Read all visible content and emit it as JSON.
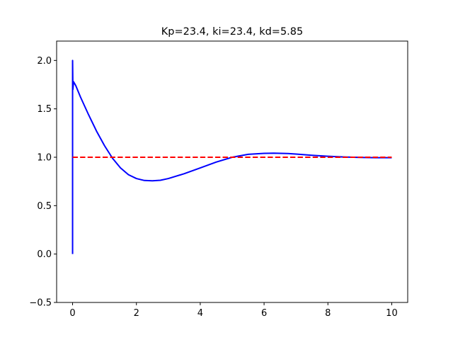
{
  "chart_data": {
    "type": "line",
    "title": "Kp=23.4, ki=23.4, kd=5.85",
    "xlabel": "",
    "ylabel": "",
    "xlim": [
      -0.5,
      10.5
    ],
    "ylim": [
      -0.5,
      2.2
    ],
    "grid": false,
    "legend": null,
    "x_ticks": [
      0,
      2,
      4,
      6,
      8,
      10
    ],
    "x_tick_labels": [
      "0",
      "2",
      "4",
      "6",
      "8",
      "10"
    ],
    "y_ticks": [
      -0.5,
      0.0,
      0.5,
      1.0,
      1.5,
      2.0
    ],
    "y_tick_labels": [
      "−0.5",
      "0.0",
      "0.5",
      "1.0",
      "1.5",
      "2.0"
    ],
    "series": [
      {
        "name": "response",
        "color": "#0000ff",
        "style": "solid",
        "x": [
          0,
          0,
          0.01,
          0.03,
          0.1,
          0.25,
          0.5,
          0.75,
          1.0,
          1.25,
          1.5,
          1.75,
          2.0,
          2.25,
          2.5,
          2.75,
          3.0,
          3.5,
          4.0,
          4.5,
          5.0,
          5.5,
          6.0,
          6.3,
          6.75,
          7.0,
          7.5,
          8.0,
          8.5,
          9.0,
          9.5,
          10.0
        ],
        "y": [
          0,
          2.0,
          1.7,
          1.78,
          1.74,
          1.62,
          1.44,
          1.27,
          1.12,
          0.99,
          0.89,
          0.82,
          0.78,
          0.76,
          0.757,
          0.762,
          0.78,
          0.83,
          0.89,
          0.95,
          1.0,
          1.03,
          1.04,
          1.042,
          1.038,
          1.033,
          1.02,
          1.01,
          1.003,
          0.998,
          0.995,
          0.995
        ]
      },
      {
        "name": "setpoint",
        "color": "#ff0000",
        "style": "dashed",
        "x": [
          0,
          10
        ],
        "y": [
          1.0,
          1.0
        ]
      }
    ]
  }
}
